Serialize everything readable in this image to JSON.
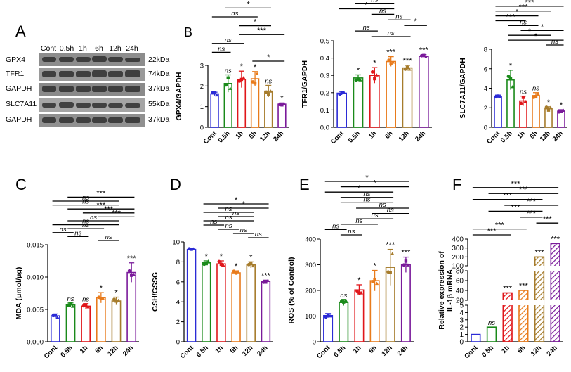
{
  "figure": {
    "panel_letters": [
      "A",
      "B",
      "C",
      "D",
      "E",
      "F"
    ],
    "categories": [
      "Cont",
      "0.5h",
      "1h",
      "6h",
      "12h",
      "24h"
    ],
    "colors": [
      "#2b2bd6",
      "#1a8a1a",
      "#e0161a",
      "#e87b1c",
      "#a67c2c",
      "#7a1a9a"
    ],
    "blot": {
      "time_labels": [
        "Cont",
        "0.5h",
        "1h",
        "6h",
        "12h",
        "24h"
      ],
      "rows": [
        {
          "protein": "GPX4",
          "mw": "22kDa"
        },
        {
          "protein": "TFR1",
          "mw": "74kDa"
        },
        {
          "protein": "GAPDH",
          "mw": "37kDa"
        },
        {
          "protein": "SLC7A11",
          "mw": "55kDa"
        },
        {
          "protein": "GAPDH",
          "mw": "37kDa"
        }
      ]
    }
  },
  "chart_data": [
    {
      "id": "gpx4",
      "type": "bar",
      "style": "open",
      "ylabel": "GPX4/GAPDH",
      "ylim": [
        0,
        3
      ],
      "yticks": [
        "0",
        "1",
        "2",
        "3"
      ],
      "categories": [
        "Cont",
        "0.5h",
        "1h",
        "6h",
        "12h",
        "24h"
      ],
      "values": [
        1.62,
        2.12,
        2.32,
        2.35,
        1.75,
        1.12
      ],
      "errors": [
        0.08,
        0.42,
        0.4,
        0.35,
        0.28,
        0.06
      ],
      "bar_labels": [
        "",
        "ns",
        "*",
        "*",
        "ns",
        "*"
      ],
      "comparisons": [
        {
          "from": 0,
          "to": 5,
          "label": "***"
        },
        {
          "from": 0,
          "to": 4,
          "label": "ns"
        },
        {
          "from": 1,
          "to": 5,
          "label": "***"
        },
        {
          "from": 1,
          "to": 4,
          "label": "*"
        },
        {
          "from": 0,
          "to": 3,
          "label": "ns"
        },
        {
          "from": 2,
          "to": 4,
          "label": "*"
        },
        {
          "from": 2,
          "to": 5,
          "label": "***"
        },
        {
          "from": 0,
          "to": 2,
          "label": "ns"
        },
        {
          "from": 0,
          "to": 1,
          "label": "ns"
        },
        {
          "from": 3,
          "to": 5,
          "label": "*"
        }
      ]
    },
    {
      "id": "tfr1",
      "type": "bar",
      "style": "open",
      "ylabel": "TFR1/GAPDH",
      "ylim": [
        0,
        0.5
      ],
      "yticks": [
        "0.0",
        "0.1",
        "0.2",
        "0.3",
        "0.4",
        "0.5"
      ],
      "categories": [
        "Cont",
        "0.5h",
        "1h",
        "6h",
        "12h",
        "24h"
      ],
      "values": [
        0.197,
        0.285,
        0.3,
        0.38,
        0.343,
        0.41
      ],
      "errors": [
        0.01,
        0.018,
        0.045,
        0.028,
        0.015,
        0.01
      ],
      "bar_labels": [
        "",
        "*",
        "*",
        "***",
        "***",
        "***"
      ],
      "comparisons": [
        {
          "from": 1,
          "to": 5,
          "label": "***"
        },
        {
          "from": 0,
          "to": 5,
          "label": "***"
        },
        {
          "from": 1,
          "to": 4,
          "label": "***"
        },
        {
          "from": 0,
          "to": 4,
          "label": "ns"
        },
        {
          "from": 1,
          "to": 3,
          "label": "ns"
        },
        {
          "from": 0,
          "to": 3,
          "label": "*"
        },
        {
          "from": 2,
          "to": 3,
          "label": "ns"
        },
        {
          "from": 3,
          "to": 4,
          "label": "ns"
        },
        {
          "from": 4,
          "to": 5,
          "label": "*"
        },
        {
          "from": 1,
          "to": 2,
          "label": "ns"
        },
        {
          "from": 2,
          "to": 4,
          "label": "ns"
        }
      ]
    },
    {
      "id": "slc7a11",
      "type": "bar",
      "style": "open",
      "ylabel": "SLC7A11/GAPDH",
      "ylim": [
        0,
        8
      ],
      "yticks": [
        "0",
        "2",
        "4",
        "6",
        "8"
      ],
      "categories": [
        "Cont",
        "0.5h",
        "1h",
        "6h",
        "12h",
        "24h"
      ],
      "values": [
        3.15,
        4.85,
        2.7,
        3.25,
        1.9,
        1.65
      ],
      "errors": [
        0.15,
        1.0,
        0.5,
        0.3,
        0.2,
        0.15
      ],
      "bar_labels": [
        "",
        "*",
        "ns",
        "ns",
        "*",
        "*"
      ],
      "comparisons": [
        {
          "from": 0,
          "to": 5,
          "label": "***"
        },
        {
          "from": 0,
          "to": 4,
          "label": "***"
        },
        {
          "from": 0,
          "to": 3,
          "label": "*"
        },
        {
          "from": 0,
          "to": 2,
          "label": "***"
        },
        {
          "from": 1,
          "to": 3,
          "label": "ns"
        },
        {
          "from": 2,
          "to": 5,
          "label": "*"
        },
        {
          "from": 1,
          "to": 4,
          "label": "*"
        },
        {
          "from": 1,
          "to": 5,
          "label": "*"
        },
        {
          "from": 4,
          "to": 5,
          "label": "ns"
        }
      ]
    },
    {
      "id": "mda",
      "type": "bar",
      "style": "open",
      "ylabel": "MDA (μmol/μg)",
      "ylim": [
        0,
        0.015
      ],
      "yticks": [
        "0.000",
        "0.005",
        "0.010",
        "0.015"
      ],
      "categories": [
        "Cont",
        "0.5h",
        "1h",
        "6h",
        "12h",
        "24h"
      ],
      "values": [
        0.004,
        0.0057,
        0.0055,
        0.0068,
        0.0063,
        0.0107
      ],
      "errors": [
        0.0003,
        0.0003,
        0.0004,
        0.0008,
        0.0006,
        0.0015
      ],
      "bar_labels": [
        "",
        "ns",
        "ns",
        "*",
        "*",
        "***"
      ],
      "comparisons": [
        {
          "from": 1,
          "to": 5,
          "label": "***"
        },
        {
          "from": 0,
          "to": 4,
          "label": "ns"
        },
        {
          "from": 0,
          "to": 4,
          "label": "ns"
        },
        {
          "from": 1,
          "to": 5,
          "label": "***"
        },
        {
          "from": 2,
          "to": 5,
          "label": "***"
        },
        {
          "from": 3,
          "to": 5,
          "label": "***"
        },
        {
          "from": 1,
          "to": 4,
          "label": "ns"
        },
        {
          "from": 0,
          "to": 4,
          "label": "ns"
        },
        {
          "from": 1,
          "to": 3,
          "label": "ns"
        },
        {
          "from": 0,
          "to": 1,
          "label": "ns"
        },
        {
          "from": 1,
          "to": 2,
          "label": "ns"
        },
        {
          "from": 3,
          "to": 4,
          "label": "ns"
        }
      ]
    },
    {
      "id": "gsh",
      "type": "bar",
      "style": "open",
      "ylabel": "GSH/GSSG",
      "ylim": [
        0,
        10
      ],
      "yticks": [
        "0",
        "2",
        "4",
        "6",
        "8",
        "10"
      ],
      "categories": [
        "Cont",
        "0.5h",
        "1h",
        "6h",
        "12h",
        "24h"
      ],
      "values": [
        9.25,
        7.9,
        7.8,
        6.9,
        7.7,
        6.05
      ],
      "errors": [
        0.12,
        0.2,
        0.3,
        0.2,
        0.3,
        0.12
      ],
      "bar_labels": [
        "",
        "*",
        "*",
        "*",
        "*",
        "***"
      ],
      "comparisons": [
        {
          "from": 1,
          "to": 5,
          "label": "*"
        },
        {
          "from": 2,
          "to": 5,
          "label": "*"
        },
        {
          "from": 1,
          "to": 4,
          "label": "ns"
        },
        {
          "from": 2,
          "to": 4,
          "label": "ns"
        },
        {
          "from": 1,
          "to": 4,
          "label": "ns"
        },
        {
          "from": 1,
          "to": 2,
          "label": "ns"
        },
        {
          "from": 2,
          "to": 3,
          "label": "ns"
        },
        {
          "from": 3,
          "to": 4,
          "label": "ns"
        },
        {
          "from": 4,
          "to": 5,
          "label": "ns"
        }
      ]
    },
    {
      "id": "ros",
      "type": "bar",
      "style": "open",
      "ylabel": "ROS (% of Control)",
      "ylim": [
        0,
        400
      ],
      "yticks": [
        "0",
        "100",
        "200",
        "300",
        "400"
      ],
      "categories": [
        "Cont",
        "0.5h",
        "1h",
        "6h",
        "12h",
        "24h"
      ],
      "values": [
        102,
        153,
        202,
        238,
        290,
        300
      ],
      "errors": [
        8,
        12,
        20,
        40,
        70,
        30
      ],
      "bar_labels": [
        "",
        "ns",
        "*",
        "*",
        "***",
        "***"
      ],
      "comparisons": [
        {
          "from": 0,
          "to": 5,
          "label": "*"
        },
        {
          "from": 1,
          "to": 5,
          "label": "*"
        },
        {
          "from": 0,
          "to": 4,
          "label": "*"
        },
        {
          "from": 1,
          "to": 4,
          "label": "ns"
        },
        {
          "from": 1,
          "to": 4,
          "label": "ns"
        },
        {
          "from": 2,
          "to": 5,
          "label": "ns"
        },
        {
          "from": 3,
          "to": 5,
          "label": "ns"
        },
        {
          "from": 2,
          "to": 4,
          "label": "ns"
        },
        {
          "from": 1,
          "to": 3,
          "label": "ns"
        },
        {
          "from": 0,
          "to": 1,
          "label": "ns"
        },
        {
          "from": 1,
          "to": 2,
          "label": "ns"
        }
      ]
    },
    {
      "id": "il1b",
      "type": "bar",
      "style": "hatched",
      "ylabel_lines": [
        "Relative expression of",
        "IL-1β mRNA"
      ],
      "categories": [
        "Cont",
        "0.5h",
        "1h",
        "6h",
        "12h",
        "24h"
      ],
      "values": [
        1,
        2,
        35,
        40,
        200,
        350
      ],
      "y_segments": [
        {
          "range": [
            0,
            5
          ],
          "ticks": [
            "0",
            "1",
            "2",
            "3",
            "4",
            "5"
          ]
        },
        {
          "range": [
            20,
            80
          ],
          "ticks": [
            "20",
            "40",
            "60",
            "80"
          ]
        },
        {
          "range": [
            100,
            400
          ],
          "ticks": [
            "100",
            "200",
            "300",
            "400"
          ]
        }
      ],
      "bar_labels": [
        "",
        "ns",
        "***",
        "***",
        "***",
        "***"
      ],
      "comparisons": [
        {
          "from": 0,
          "to": 5,
          "label": "***"
        },
        {
          "from": 1,
          "to": 5,
          "label": "***"
        },
        {
          "from": 0,
          "to": 4,
          "label": "***"
        },
        {
          "from": 2,
          "to": 5,
          "label": "***"
        },
        {
          "from": 1,
          "to": 4,
          "label": "***"
        },
        {
          "from": 3,
          "to": 4,
          "label": "***"
        },
        {
          "from": 4,
          "to": 5,
          "label": "***"
        },
        {
          "from": 0,
          "to": 3,
          "label": "***"
        },
        {
          "from": 0,
          "to": 2,
          "label": "***"
        }
      ]
    }
  ]
}
